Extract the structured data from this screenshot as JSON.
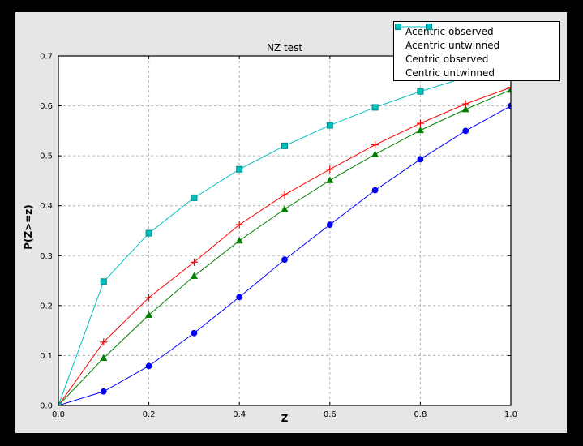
{
  "colors": {
    "outer_background": "#000000",
    "figure_background": "#e6e6e6",
    "plot_background": "#ffffff",
    "grid": "#b3b3b3",
    "frame": "#000000"
  },
  "chart_data": {
    "type": "line",
    "title": "NZ test",
    "xlabel": "Z",
    "ylabel": "P(Z>=z)",
    "xlim": [
      0.0,
      1.0
    ],
    "ylim": [
      0.0,
      0.7
    ],
    "grid": true,
    "legend_position": "upper-right, overlapping top-right corner of axes",
    "xtick_values": [
      0.0,
      0.2,
      0.4,
      0.6,
      0.8,
      1.0
    ],
    "xtick_labels": [
      "0.0",
      "0.2",
      "0.4",
      "0.6",
      "0.8",
      "1.0"
    ],
    "ytick_values": [
      0.0,
      0.1,
      0.2,
      0.3,
      0.4,
      0.5,
      0.6,
      0.7
    ],
    "ytick_labels": [
      "0.0",
      "0.1",
      "0.2",
      "0.3",
      "0.4",
      "0.5",
      "0.6",
      "0.7"
    ],
    "x": [
      0.0,
      0.1,
      0.2,
      0.3,
      0.4,
      0.5,
      0.6,
      0.7,
      0.8,
      0.9,
      1.0
    ],
    "series": [
      {
        "name": "Acentric observed",
        "color": "#0000ff",
        "marker": "circle",
        "legend_marker": "none",
        "values": [
          0.0,
          0.028,
          0.079,
          0.145,
          0.217,
          0.292,
          0.362,
          0.431,
          0.493,
          0.55,
          0.6
        ]
      },
      {
        "name": "Acentric untwinned",
        "color": "#008000",
        "marker": "triangle",
        "legend_marker": "none",
        "values": [
          0.0,
          0.095,
          0.181,
          0.259,
          0.33,
          0.393,
          0.451,
          0.503,
          0.551,
          0.593,
          0.632
        ]
      },
      {
        "name": "Centric observed",
        "color": "#ff0000",
        "marker": "plus",
        "legend_marker": "plus",
        "values": [
          0.0,
          0.127,
          0.216,
          0.287,
          0.362,
          0.422,
          0.473,
          0.522,
          0.565,
          0.604,
          0.637
        ]
      },
      {
        "name": "Centric untwinned",
        "color": "#00bfbf",
        "marker": "square",
        "marker_edge": "#008b8b",
        "legend_marker": "square",
        "values": [
          0.0,
          0.248,
          0.345,
          0.416,
          0.473,
          0.52,
          0.561,
          0.597,
          0.629,
          0.657,
          0.683
        ]
      }
    ]
  }
}
